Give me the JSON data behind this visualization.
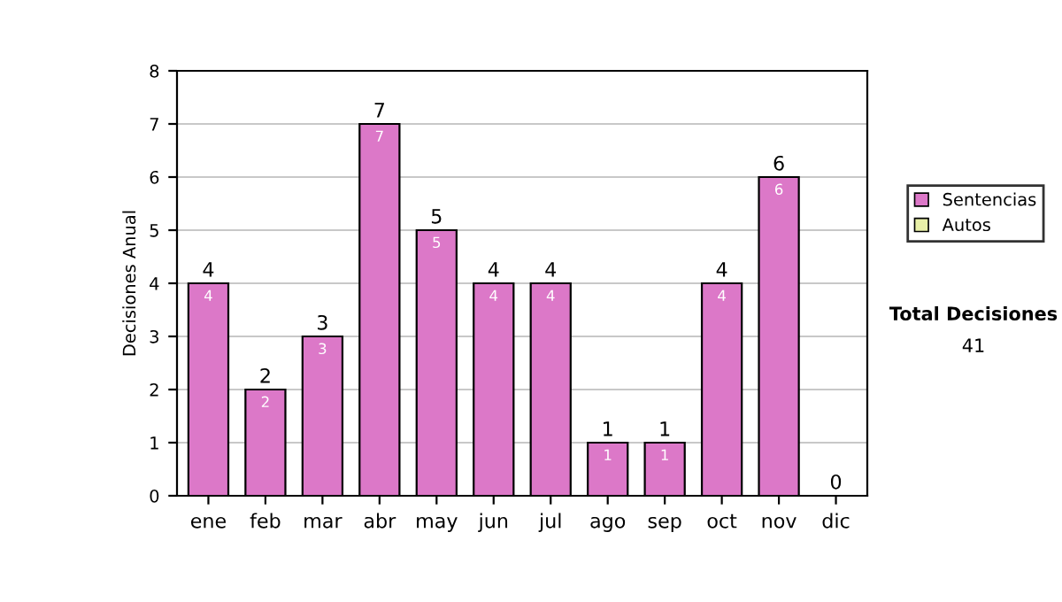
{
  "chart_data": {
    "type": "bar",
    "stacked": true,
    "ylabel": "Decisiones Anual",
    "categories": [
      "ene",
      "feb",
      "mar",
      "abr",
      "may",
      "jun",
      "jul",
      "ago",
      "sep",
      "oct",
      "nov",
      "dic"
    ],
    "series": [
      {
        "name": "Sentencias",
        "color": "#dc78c8",
        "values": [
          4,
          2,
          3,
          7,
          5,
          4,
          4,
          1,
          1,
          4,
          6,
          0
        ],
        "value_labels": [
          "4",
          "2",
          "3",
          "7",
          "5",
          "4",
          "4",
          "1",
          "1",
          "4",
          "6",
          null
        ]
      },
      {
        "name": "Autos",
        "color": "#e8f0a8",
        "values": [
          0,
          0,
          0,
          0,
          0,
          0,
          0,
          0,
          0,
          0,
          0,
          0
        ]
      }
    ],
    "totals": [
      "4",
      "2",
      "3",
      "7",
      "5",
      "4",
      "4",
      "1",
      "1",
      "4",
      "6",
      "0"
    ],
    "ylim": [
      0,
      8
    ],
    "yticks": [
      0,
      1,
      2,
      3,
      4,
      5,
      6,
      7,
      8
    ],
    "grid": "y",
    "legend": "right",
    "annotations": [
      "Total Decisiones",
      "41"
    ]
  }
}
